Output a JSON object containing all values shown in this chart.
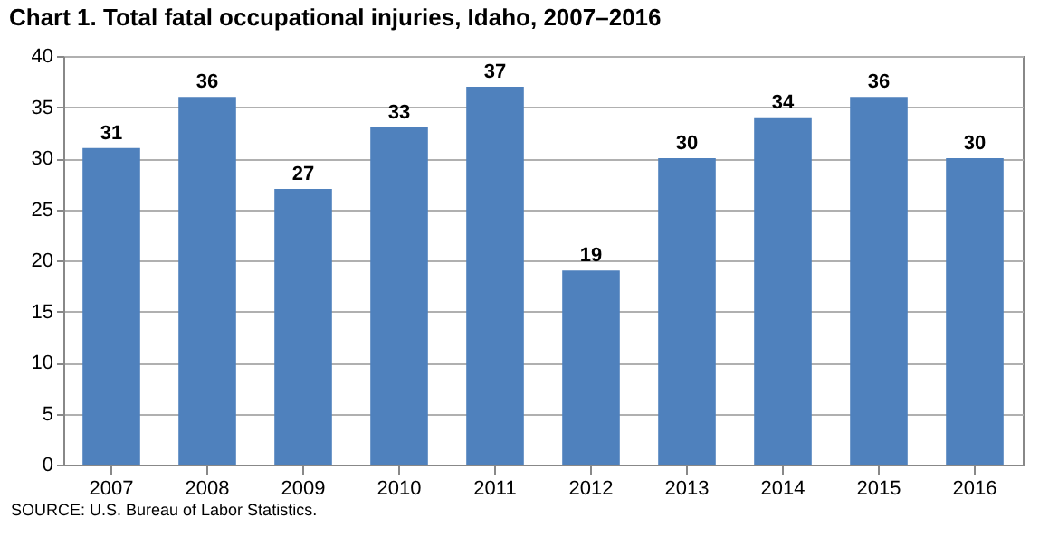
{
  "chart_data": {
    "type": "bar",
    "title": "Chart 1. Total fatal occupational injuries, Idaho, 2007–2016",
    "categories": [
      "2007",
      "2008",
      "2009",
      "2010",
      "2011",
      "2012",
      "2013",
      "2014",
      "2015",
      "2016"
    ],
    "values": [
      31,
      36,
      27,
      33,
      37,
      19,
      30,
      34,
      36,
      30
    ],
    "color": "#4f81bd",
    "ylim": [
      0,
      40
    ],
    "yticks": [
      0,
      5,
      10,
      15,
      20,
      25,
      30,
      35,
      40
    ],
    "grid": "y",
    "data_labels": true,
    "annotations": [
      "SOURCE: U.S. Bureau of Labor Statistics."
    ]
  }
}
